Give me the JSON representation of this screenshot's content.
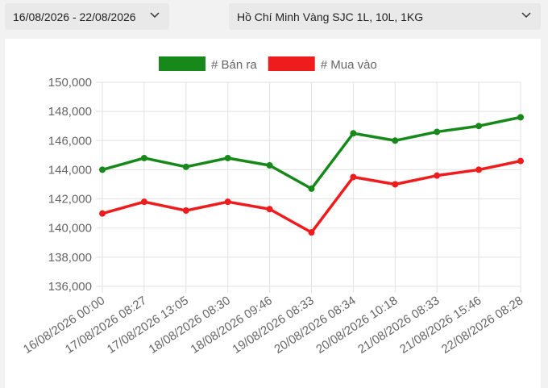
{
  "header": {
    "date_range": "16/08/2026 - 22/08/2026",
    "product": "Hồ Chí Minh Vàng SJC 1L, 10L, 1KG"
  },
  "chart_data": {
    "type": "line",
    "categories": [
      "16/08/2026 00:00",
      "17/08/2026 08:27",
      "17/08/2026 13:05",
      "18/08/2026 08:30",
      "18/08/2026 09:46",
      "19/08/2026 08:33",
      "20/08/2026 08:34",
      "20/08/2026 10:18",
      "21/08/2026 08:33",
      "21/08/2026 15:46",
      "22/08/2026 08:28"
    ],
    "series": [
      {
        "name": "# Bán ra",
        "color": "#17891a",
        "values": [
          144000,
          144800,
          144200,
          144800,
          144300,
          142700,
          146500,
          146000,
          146600,
          147000,
          147600
        ]
      },
      {
        "name": "# Mua vào",
        "color": "#ee1c1c",
        "values": [
          141000,
          141800,
          141200,
          141800,
          141300,
          139700,
          143500,
          143000,
          143600,
          144000,
          144600
        ]
      }
    ],
    "ylim": [
      136000,
      150000
    ],
    "yticks": [
      {
        "value": 136000,
        "label": "136,000"
      },
      {
        "value": 138000,
        "label": "138,000"
      },
      {
        "value": 140000,
        "label": "140,000"
      },
      {
        "value": 142000,
        "label": "142,000"
      },
      {
        "value": 144000,
        "label": "144,000"
      },
      {
        "value": 146000,
        "label": "146,000"
      },
      {
        "value": 148000,
        "label": "148,000"
      },
      {
        "value": 150000,
        "label": "150,000"
      }
    ],
    "grid": true,
    "legend": "top"
  }
}
